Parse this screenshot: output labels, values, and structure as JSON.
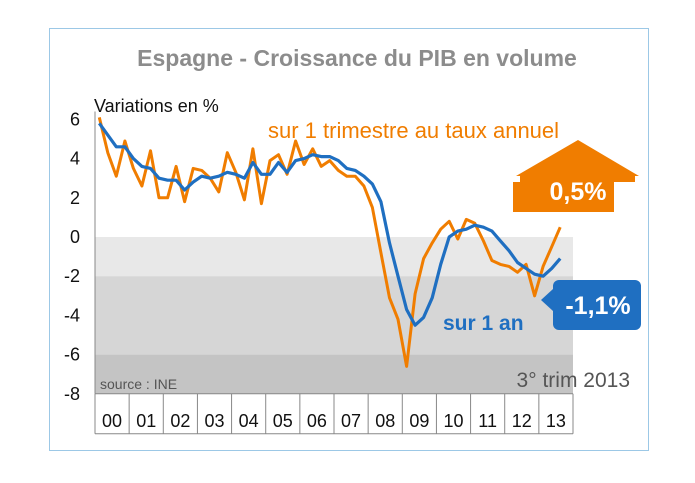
{
  "chart_data": {
    "type": "line",
    "title": "Espagne - Croissance du PIB en volume",
    "ylabel": "Variations en %",
    "ylim": [
      -8,
      6.4
    ],
    "yticks": [
      6,
      4,
      2,
      0,
      -2,
      -4,
      -6,
      -8
    ],
    "year_labels": [
      "00",
      "01",
      "02",
      "03",
      "04",
      "05",
      "06",
      "07",
      "08",
      "09",
      "10",
      "11",
      "12",
      "13"
    ],
    "x_start": 2000.0,
    "x_step": 0.25,
    "series": [
      {
        "name": "sur 1 trimestre au taux annuel",
        "color": "#f07d00",
        "values": [
          6.1,
          4.3,
          3.1,
          4.9,
          3.5,
          2.6,
          4.4,
          2.0,
          2.0,
          3.6,
          1.8,
          3.5,
          3.4,
          3.0,
          2.3,
          4.3,
          3.3,
          1.9,
          4.5,
          1.7,
          3.9,
          4.2,
          3.2,
          4.9,
          3.7,
          4.5,
          3.6,
          3.9,
          3.4,
          3.1,
          3.1,
          2.6,
          1.5,
          -0.8,
          -3.1,
          -4.2,
          -6.6,
          -2.9,
          -1.1,
          -0.3,
          0.4,
          0.8,
          -0.1,
          0.9,
          0.7,
          -0.2,
          -1.2,
          -1.4,
          -1.5,
          -1.8,
          -1.4,
          -3.0,
          -1.5,
          -0.5,
          0.5
        ]
      },
      {
        "name": "sur 1 an",
        "color": "#1f6fc1",
        "values": [
          5.8,
          5.2,
          4.6,
          4.6,
          4.0,
          3.6,
          3.5,
          3.0,
          2.9,
          2.9,
          2.4,
          2.8,
          3.1,
          3.0,
          3.1,
          3.3,
          3.2,
          3.0,
          3.8,
          3.2,
          3.2,
          3.8,
          3.3,
          3.9,
          4.0,
          4.2,
          4.1,
          4.1,
          3.9,
          3.5,
          3.4,
          3.1,
          2.7,
          1.8,
          -0.3,
          -2.0,
          -3.7,
          -4.5,
          -4.1,
          -3.1,
          -1.4,
          0.0,
          0.3,
          0.4,
          0.6,
          0.5,
          0.3,
          -0.2,
          -0.7,
          -1.3,
          -1.6,
          -1.9,
          -2.0,
          -1.6,
          -1.1
        ]
      }
    ],
    "shading": [
      {
        "from": 0,
        "to": -2,
        "color": "#e8e8e8"
      },
      {
        "from": -2,
        "to": -6,
        "color": "#d6d6d6"
      },
      {
        "from": -6,
        "to": -8,
        "color": "#c4c4c4"
      }
    ],
    "annotations": {
      "source": "source : INE",
      "period": "3° trim 2013",
      "orange_series_label": "sur 1 trimestre au taux annuel",
      "blue_series_label": "sur 1 an",
      "orange_callout": "0,5%",
      "blue_callout": "-1,1%"
    },
    "colors": {
      "orange": "#f07d00",
      "blue": "#1f6fc1",
      "border": "#9cc8e6"
    }
  }
}
